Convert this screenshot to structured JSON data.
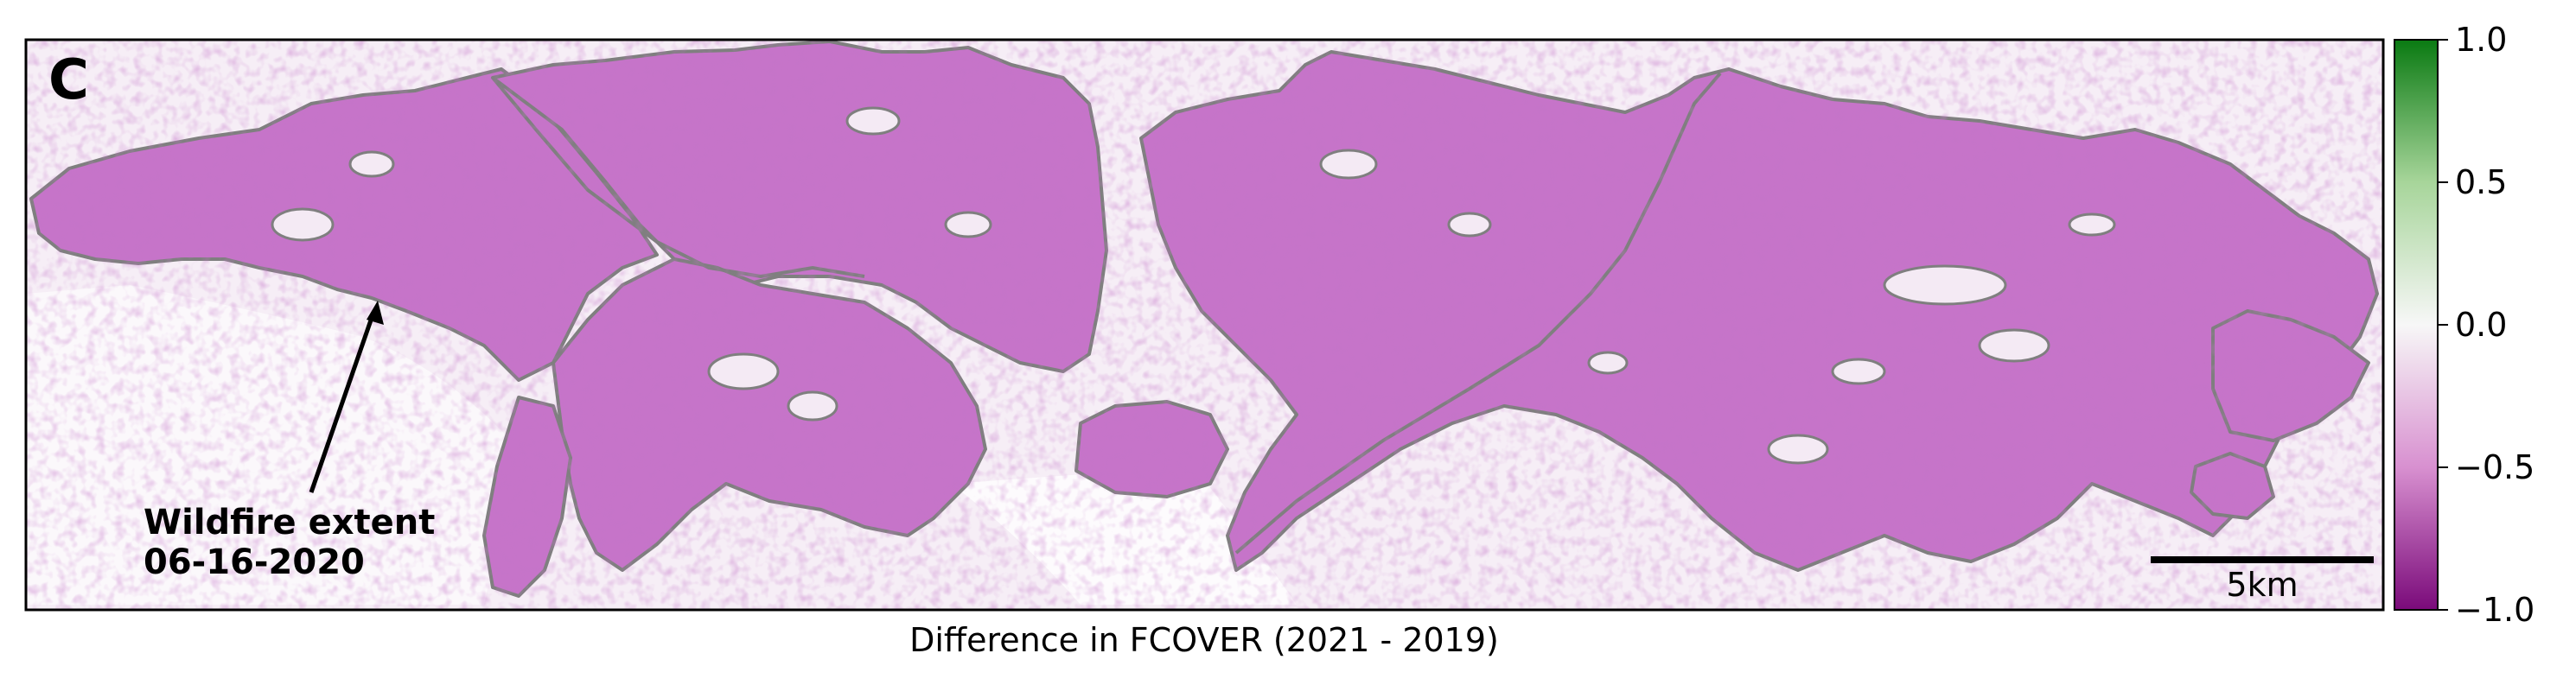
{
  "panel": {
    "letter": "C"
  },
  "annotation": {
    "line1": "Wildfire extent",
    "line2": "06-16-2020"
  },
  "scale_bar": {
    "label": "5km"
  },
  "colorbar": {
    "ticks": [
      {
        "value": 1.0,
        "label": "1.0"
      },
      {
        "value": 0.5,
        "label": "0.5"
      },
      {
        "value": 0.0,
        "label": "0.0"
      },
      {
        "value": -0.5,
        "label": "−0.5"
      },
      {
        "value": -1.0,
        "label": "−1.0"
      }
    ],
    "colors": {
      "max": "#0a7a12",
      "mid_high": "#a7d59a",
      "zero": "#f7f7f7",
      "mid_low": "#d890d0",
      "min": "#7a0a7a"
    }
  },
  "map": {
    "burn_fill": "#c674c9",
    "burn_outline": "#7f7f7f",
    "background_tint": "#f6eef6"
  },
  "xlabel": "Difference in FCOVER (2021 - 2019)"
}
